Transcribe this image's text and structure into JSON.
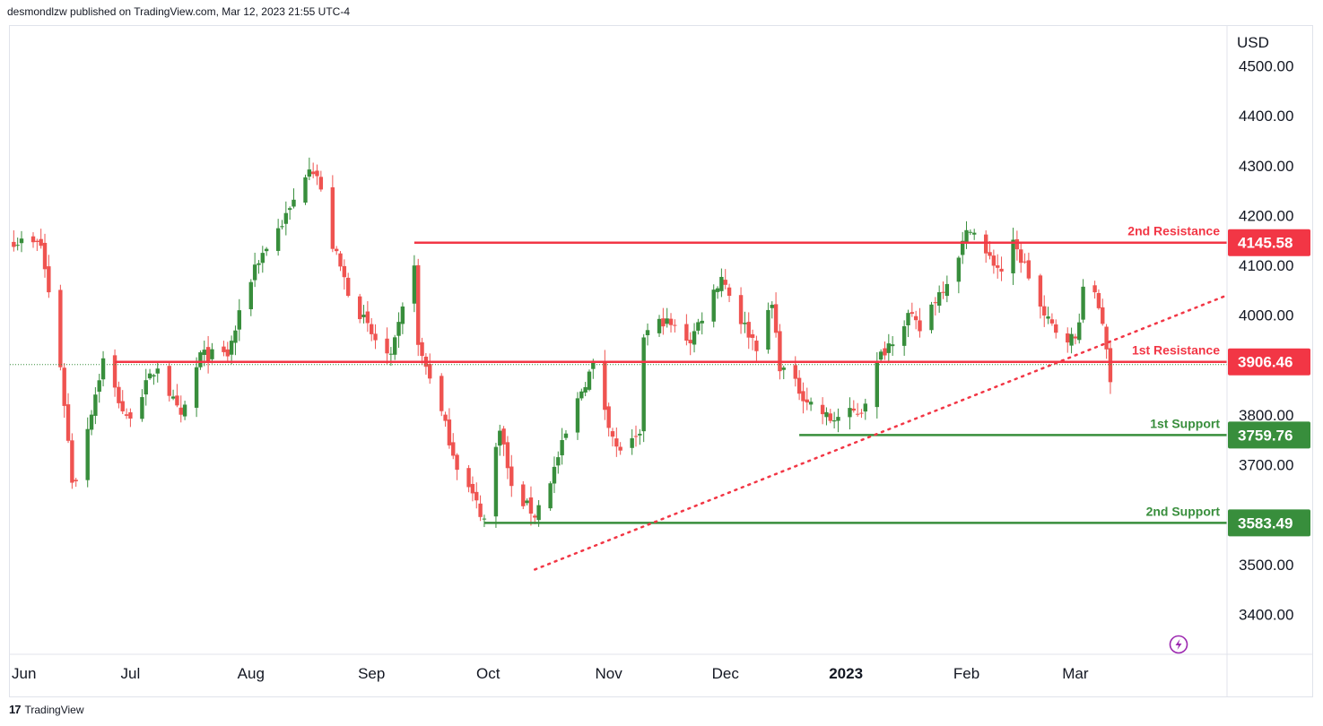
{
  "header": {
    "text": "desmondlzw published on TradingView.com, Mar 12, 2023 21:55 UTC-4"
  },
  "footer": {
    "brand": "TradingView",
    "logo_glyph": "17"
  },
  "colors": {
    "up": "#388e3c",
    "down": "#ef5350",
    "resistance": "#f23645",
    "support": "#388e3c",
    "trend": "#f23645",
    "grid": "#e0e3eb",
    "text": "#131722"
  },
  "icons": {
    "flash": "lightning-icon"
  },
  "chart_data": {
    "type": "candlestick",
    "title": "",
    "currency": "USD",
    "ylim": [
      3320,
      4580
    ],
    "yticks": [
      "4500.00",
      "4400.00",
      "4300.00",
      "4200.00",
      "4100.00",
      "4000.00",
      "3800.00",
      "3700.00",
      "3600.00",
      "3500.00",
      "3400.00"
    ],
    "ytick_values": [
      4500,
      4400,
      4300,
      4200,
      4100,
      4000,
      3800,
      3700,
      3600,
      3500,
      3400
    ],
    "months": [
      {
        "label": "Jun",
        "date": "2022-06-01"
      },
      {
        "label": "Jul",
        "date": "2022-07-01"
      },
      {
        "label": "Aug",
        "date": "2022-08-01"
      },
      {
        "label": "Sep",
        "date": "2022-09-01"
      },
      {
        "label": "Oct",
        "date": "2022-10-01"
      },
      {
        "label": "Nov",
        "date": "2022-11-01"
      },
      {
        "label": "Dec",
        "date": "2022-12-01"
      },
      {
        "label": "2023",
        "date": "2023-01-01",
        "bold": true
      },
      {
        "label": "Feb",
        "date": "2023-02-01"
      },
      {
        "label": "Mar",
        "date": "2023-03-01"
      }
    ],
    "xlim": [
      "2022-05-31",
      "2023-04-09"
    ],
    "anchor_points": [
      [
        "2022-06-01",
        4150
      ],
      [
        "2022-06-08",
        4140
      ],
      [
        "2022-06-13",
        3900
      ],
      [
        "2022-06-16",
        3670
      ],
      [
        "2022-06-17",
        3675
      ],
      [
        "2022-06-24",
        3910
      ],
      [
        "2022-06-30",
        3790
      ],
      [
        "2022-07-08",
        3900
      ],
      [
        "2022-07-14",
        3790
      ],
      [
        "2022-07-19",
        3920
      ],
      [
        "2022-07-26",
        3920
      ],
      [
        "2022-08-02",
        4100
      ],
      [
        "2022-08-11",
        4210
      ],
      [
        "2022-08-16",
        4305
      ],
      [
        "2022-08-18",
        4280
      ],
      [
        "2022-08-22",
        4140
      ],
      [
        "2022-08-26",
        4050
      ],
      [
        "2022-09-01",
        3960
      ],
      [
        "2022-09-06",
        3910
      ],
      [
        "2022-09-12",
        4110
      ],
      [
        "2022-09-13",
        3935
      ],
      [
        "2022-09-16",
        3880
      ],
      [
        "2022-09-23",
        3700
      ],
      [
        "2022-09-30",
        3590
      ],
      [
        "2022-10-04",
        3780
      ],
      [
        "2022-10-07",
        3650
      ],
      [
        "2022-10-13",
        3600
      ],
      [
        "2022-10-17",
        3670
      ],
      [
        "2022-10-25",
        3850
      ],
      [
        "2022-10-28",
        3900
      ],
      [
        "2022-11-03",
        3730
      ],
      [
        "2022-11-09",
        3750
      ],
      [
        "2022-11-10",
        3960
      ],
      [
        "2022-11-15",
        3990
      ],
      [
        "2022-11-22",
        3950
      ],
      [
        "2022-11-30",
        4080
      ],
      [
        "2022-12-05",
        3990
      ],
      [
        "2022-12-09",
        3940
      ],
      [
        "2022-12-13",
        4020
      ],
      [
        "2022-12-15",
        3900
      ],
      [
        "2022-12-22",
        3830
      ],
      [
        "2022-12-28",
        3790
      ],
      [
        "2023-01-05",
        3810
      ],
      [
        "2023-01-10",
        3920
      ],
      [
        "2023-01-17",
        4000
      ],
      [
        "2023-01-20",
        3970
      ],
      [
        "2023-01-23",
        4020
      ],
      [
        "2023-01-27",
        4070
      ],
      [
        "2023-02-02",
        4180
      ],
      [
        "2023-02-06",
        4120
      ],
      [
        "2023-02-10",
        4090
      ],
      [
        "2023-02-13",
        4140
      ],
      [
        "2023-02-16",
        4100
      ],
      [
        "2023-02-21",
        3995
      ],
      [
        "2023-02-24",
        3970
      ],
      [
        "2023-03-01",
        3950
      ],
      [
        "2023-03-03",
        4045
      ],
      [
        "2023-03-06",
        4048
      ],
      [
        "2023-03-08",
        3990
      ],
      [
        "2023-03-09",
        3920
      ],
      [
        "2023-03-10",
        3861
      ]
    ],
    "levels": [
      {
        "name": "2nd Resistance",
        "value": 4145.58,
        "label": "4145.58",
        "kind": "resistance",
        "start": "2022-09-12"
      },
      {
        "name": "1st Resistance",
        "value": 3906.46,
        "label": "3906.46",
        "kind": "resistance",
        "start": "2022-06-27"
      },
      {
        "name": "1st Support",
        "value": 3759.76,
        "label": "3759.76",
        "kind": "support",
        "start": "2022-12-20"
      },
      {
        "name": "2nd Support",
        "value": 3583.49,
        "label": "3583.49",
        "kind": "support",
        "start": "2022-09-30"
      }
    ],
    "trendline": {
      "start": [
        "2022-10-13",
        3490
      ],
      "end": [
        "2023-04-09",
        4040
      ],
      "style": "dotted"
    },
    "last_price_line": 3906.46
  }
}
